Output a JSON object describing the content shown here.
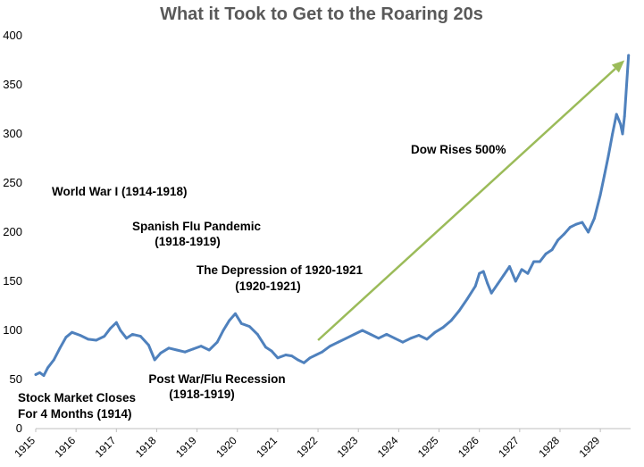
{
  "chart_data": {
    "type": "line",
    "title": "What it Took to Get to the Roaring 20s",
    "xlabel": "",
    "ylabel": "",
    "ylim": [
      0,
      400
    ],
    "xlim": [
      1915.0,
      1929.75
    ],
    "yticks": [
      "0",
      "50",
      "100",
      "150",
      "200",
      "250",
      "300",
      "350",
      "400"
    ],
    "xticks": [
      "1915",
      "1916",
      "1917",
      "1918",
      "1919",
      "1920",
      "1921",
      "1922",
      "1923",
      "1924",
      "1925",
      "1926",
      "1927",
      "1928",
      "1929"
    ],
    "grid": false,
    "legend": "none",
    "series": [
      {
        "color": "#4f81bd",
        "x": [
          1915.0,
          1915.1,
          1915.2,
          1915.3,
          1915.45,
          1915.6,
          1915.75,
          1915.9,
          1916.1,
          1916.3,
          1916.5,
          1916.7,
          1916.85,
          1917.0,
          1917.1,
          1917.25,
          1917.4,
          1917.6,
          1917.8,
          1917.95,
          1918.1,
          1918.3,
          1918.5,
          1918.7,
          1918.9,
          1919.1,
          1919.3,
          1919.5,
          1919.65,
          1919.8,
          1919.95,
          1920.1,
          1920.3,
          1920.5,
          1920.7,
          1920.85,
          1921.0,
          1921.2,
          1921.35,
          1921.5,
          1921.65,
          1921.8,
          1921.95,
          1922.1,
          1922.3,
          1922.5,
          1922.7,
          1922.9,
          1923.1,
          1923.3,
          1923.5,
          1923.7,
          1923.9,
          1924.1,
          1924.3,
          1924.5,
          1924.7,
          1924.9,
          1925.1,
          1925.3,
          1925.5,
          1925.7,
          1925.9,
          1926.0,
          1926.1,
          1926.2,
          1926.3,
          1926.45,
          1926.6,
          1926.75,
          1926.9,
          1927.05,
          1927.2,
          1927.35,
          1927.5,
          1927.65,
          1927.8,
          1927.95,
          1928.1,
          1928.25,
          1928.4,
          1928.55,
          1928.7,
          1928.85,
          1929.0,
          1929.1,
          1929.2,
          1929.3,
          1929.4,
          1929.5,
          1929.55,
          1929.6,
          1929.7
        ],
        "values": [
          55,
          57,
          54,
          62,
          70,
          82,
          93,
          98,
          95,
          91,
          90,
          94,
          102,
          108,
          100,
          92,
          96,
          94,
          85,
          70,
          77,
          82,
          80,
          78,
          81,
          84,
          80,
          88,
          100,
          110,
          117,
          107,
          104,
          96,
          83,
          79,
          72,
          75,
          74,
          70,
          67,
          72,
          75,
          78,
          84,
          88,
          92,
          96,
          100,
          96,
          92,
          96,
          92,
          88,
          92,
          95,
          91,
          98,
          103,
          110,
          120,
          132,
          145,
          158,
          160,
          148,
          138,
          147,
          156,
          165,
          150,
          162,
          158,
          170,
          170,
          178,
          182,
          192,
          198,
          205,
          208,
          210,
          200,
          214,
          238,
          258,
          278,
          300,
          320,
          310,
          300,
          318,
          380
        ]
      }
    ],
    "annotations": [
      {
        "text": "World War I (1914-1918)"
      },
      {
        "lines": [
          "Spanish Flu Pandemic",
          "(1918-1919)"
        ]
      },
      {
        "lines": [
          "The Depression of 1920-1921",
          "(1920-1921)"
        ]
      },
      {
        "text": "Dow Rises 500%"
      },
      {
        "lines": [
          "Post War/Flu Recession",
          "(1918-1919)"
        ]
      },
      {
        "lines": [
          "Stock Market Closes",
          "For 4 Months (1914)"
        ]
      }
    ],
    "arrow": {
      "color": "#9bbb59",
      "from": [
        1922.0,
        90
      ],
      "to": [
        1929.6,
        375
      ]
    }
  }
}
